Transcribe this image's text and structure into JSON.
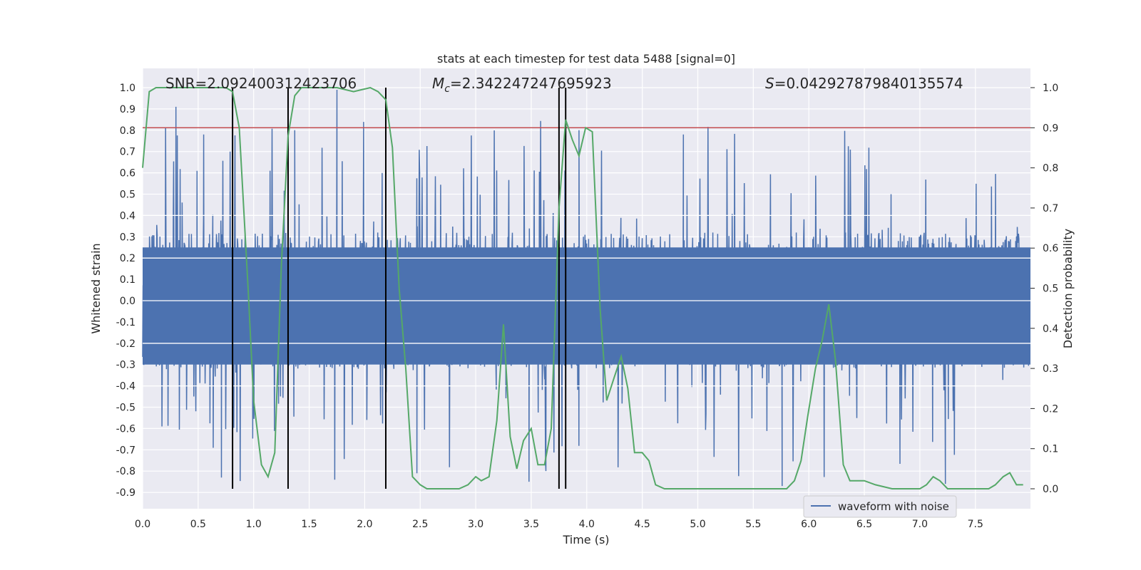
{
  "chart_data": {
    "type": "line",
    "title": "stats at each timestep for test data 5488 [signal=0]",
    "xlabel": "Time (s)",
    "ylabel": "Whitened strain",
    "ylabel_right": "Detection probability",
    "xlim": [
      0.0,
      8.0
    ],
    "ylim": [
      -1.0,
      1.05
    ],
    "ylim_right": [
      -0.05,
      1.02
    ],
    "xticks": [
      "0.0",
      "0.5",
      "1.0",
      "1.5",
      "2.0",
      "2.5",
      "3.0",
      "3.5",
      "4.0",
      "4.5",
      "5.0",
      "5.5",
      "6.0",
      "6.5",
      "7.0",
      "7.5"
    ],
    "xtick_values": [
      0,
      0.5,
      1,
      1.5,
      2,
      2.5,
      3,
      3.5,
      4,
      4.5,
      5,
      5.5,
      6,
      6.5,
      7,
      7.5
    ],
    "yticks": [
      "1.0",
      "0.9",
      "0.8",
      "0.7",
      "0.6",
      "0.5",
      "0.4",
      "0.3",
      "0.2",
      "0.1",
      "0.0",
      "-0.1",
      "-0.2",
      "-0.3",
      "-0.4",
      "-0.5",
      "-0.6",
      "-0.7",
      "-0.8",
      "-0.9"
    ],
    "ytick_values": [
      1.0,
      0.9,
      0.8,
      0.7,
      0.6,
      0.5,
      0.4,
      0.3,
      0.2,
      0.1,
      0.0,
      -0.1,
      -0.2,
      -0.3,
      -0.4,
      -0.5,
      -0.6,
      -0.7,
      -0.8,
      -0.9
    ],
    "yticks_right": [
      "1.0",
      "0.9",
      "0.8",
      "0.7",
      "0.6",
      "0.5",
      "0.4",
      "0.3",
      "0.2",
      "0.1",
      "0.0"
    ],
    "ytick_values_right": [
      1.0,
      0.9,
      0.8,
      0.7,
      0.6,
      0.5,
      0.4,
      0.3,
      0.2,
      0.1,
      0.0
    ],
    "annotations": {
      "snr": "SNR=2.092400312423706",
      "mc_symbol": "M",
      "mc_sub": "c",
      "mc_value": "=2.342247247695923",
      "s_symbol": "S",
      "s_value": "=0.042927879840135574"
    },
    "legend": {
      "label": "waveform with noise",
      "placement": "lower-right"
    },
    "threshold": {
      "value": 0.9,
      "axis": "right",
      "color": "#c44e52"
    },
    "vertical_markers": [
      0.81,
      1.31,
      2.19,
      3.75,
      3.81
    ],
    "series": [
      {
        "name": "waveform with noise",
        "axis": "left",
        "color": "#4c72b0",
        "note": "dense noisy waveform, envelope approx +/-0.3 core with spikes to about +/-0.9",
        "peak_max": 0.99,
        "peak_min": -0.87
      },
      {
        "name": "detection probability",
        "axis": "right",
        "color": "#55a868",
        "x": [
          0.0,
          0.06,
          0.12,
          0.2,
          0.4,
          0.6,
          0.75,
          0.81,
          0.87,
          0.95,
          1.0,
          1.07,
          1.13,
          1.19,
          1.25,
          1.31,
          1.37,
          1.43,
          1.5,
          1.75,
          1.9,
          2.05,
          2.12,
          2.19,
          2.25,
          2.31,
          2.37,
          2.43,
          2.5,
          2.56,
          2.7,
          2.85,
          2.93,
          3.0,
          3.05,
          3.12,
          3.19,
          3.25,
          3.31,
          3.37,
          3.43,
          3.5,
          3.56,
          3.62,
          3.68,
          3.75,
          3.81,
          3.87,
          3.93,
          3.99,
          4.05,
          4.12,
          4.18,
          4.25,
          4.31,
          4.37,
          4.43,
          4.5,
          4.56,
          4.62,
          4.7,
          4.9,
          5.2,
          5.5,
          5.75,
          5.8,
          5.87,
          5.93,
          5.99,
          6.06,
          6.12,
          6.18,
          6.24,
          6.31,
          6.37,
          6.43,
          6.5,
          6.6,
          6.75,
          6.9,
          7.0,
          7.06,
          7.12,
          7.18,
          7.25,
          7.35,
          7.5,
          7.62,
          7.68,
          7.75,
          7.81,
          7.87,
          7.93
        ],
        "values": [
          0.8,
          0.99,
          1.0,
          1.0,
          1.0,
          1.0,
          1.0,
          0.99,
          0.9,
          0.5,
          0.22,
          0.06,
          0.03,
          0.09,
          0.56,
          0.88,
          0.98,
          1.0,
          1.0,
          1.0,
          0.99,
          1.0,
          0.99,
          0.97,
          0.85,
          0.5,
          0.3,
          0.03,
          0.01,
          0.0,
          0.0,
          0.0,
          0.01,
          0.03,
          0.02,
          0.03,
          0.17,
          0.41,
          0.13,
          0.05,
          0.12,
          0.15,
          0.06,
          0.06,
          0.15,
          0.7,
          0.92,
          0.87,
          0.83,
          0.9,
          0.89,
          0.45,
          0.22,
          0.28,
          0.33,
          0.25,
          0.09,
          0.09,
          0.07,
          0.01,
          0.0,
          0.0,
          0.0,
          0.0,
          0.0,
          0.0,
          0.02,
          0.07,
          0.18,
          0.3,
          0.37,
          0.46,
          0.32,
          0.06,
          0.02,
          0.02,
          0.02,
          0.01,
          0.0,
          0.0,
          0.0,
          0.01,
          0.03,
          0.02,
          0.0,
          0.0,
          0.0,
          0.0,
          0.01,
          0.03,
          0.04,
          0.01,
          0.01
        ]
      }
    ]
  }
}
